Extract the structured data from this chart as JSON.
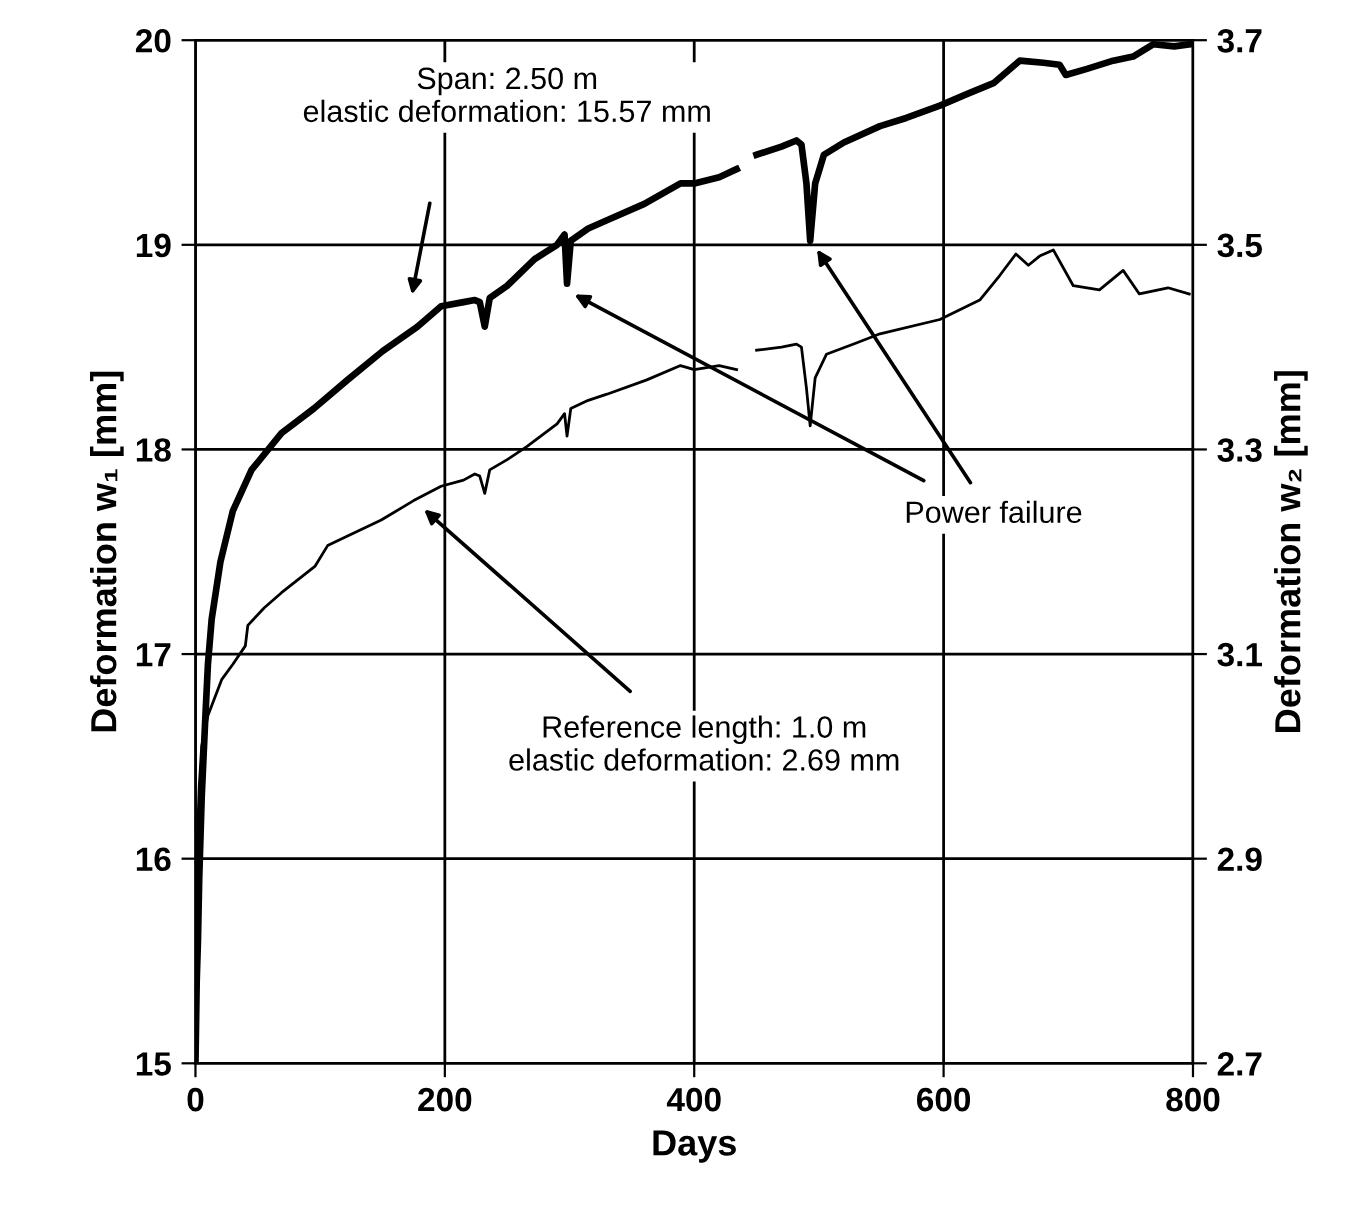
{
  "chart_data": {
    "type": "line",
    "xlabel": "Days",
    "ylabel": "Deformation w₁ [mm]",
    "y2label": "Deformation w₂ [mm]",
    "xlim": [
      0,
      800
    ],
    "xticks": [
      0,
      200,
      400,
      600,
      800
    ],
    "ylim": [
      15,
      20
    ],
    "yticks": [
      15,
      16,
      17,
      18,
      19,
      20
    ],
    "y2lim": [
      2.7,
      3.7
    ],
    "y2ticks": [
      2.7,
      2.9,
      3.1,
      3.3,
      3.5,
      3.7
    ],
    "grid": true,
    "marker": "none",
    "line_style": "solid",
    "series": [
      {
        "color": "#000000",
        "axis": "y",
        "x": [
          0,
          1,
          2,
          3,
          5,
          8,
          10,
          13,
          20,
          30,
          45,
          69,
          95,
          122,
          150,
          178,
          197,
          215,
          224,
          228,
          232,
          236,
          250,
          272,
          290,
          296,
          298,
          301,
          315,
          330,
          360,
          389,
          400,
          420,
          434,
          436,
          450,
          470,
          482,
          486,
          490,
          493,
          497,
          504,
          520,
          549,
          570,
          597,
          620,
          640,
          661,
          680,
          693,
          698,
          715,
          736,
          752,
          768,
          785,
          797
        ],
        "values": [
          15.0,
          15.4,
          15.6,
          15.9,
          16.3,
          16.7,
          16.95,
          17.17,
          17.45,
          17.7,
          17.9,
          18.08,
          18.2,
          18.34,
          18.48,
          18.6,
          18.7,
          18.72,
          18.73,
          18.72,
          18.6,
          18.74,
          18.8,
          18.93,
          19.0,
          19.05,
          18.81,
          19.02,
          19.08,
          19.12,
          19.2,
          19.3,
          19.3,
          19.33,
          19.37,
          null,
          19.44,
          19.48,
          19.51,
          19.49,
          19.3,
          19.02,
          19.3,
          19.44,
          19.5,
          19.58,
          19.62,
          19.68,
          19.74,
          19.79,
          19.9,
          19.89,
          19.88,
          19.83,
          19.86,
          19.9,
          19.92,
          19.98,
          19.97,
          19.98
        ]
      },
      {
        "color": "#000000",
        "axis": "y2",
        "x": [
          1,
          3,
          5,
          10,
          21,
          30,
          40,
          42,
          55,
          69,
          96,
          106,
          130,
          149,
          175,
          197,
          215,
          224,
          228,
          232,
          236,
          250,
          266,
          290,
          296,
          298,
          301,
          315,
          330,
          362,
          389,
          400,
          420,
          434,
          436,
          450,
          470,
          482,
          486,
          490,
          493,
          497,
          506,
          530,
          549,
          597,
          629,
          645,
          658,
          668,
          677,
          688,
          704,
          725,
          744,
          757,
          780,
          797
        ],
        "values": [
          2.9,
          2.97,
          3.01,
          3.04,
          3.075,
          3.09,
          3.108,
          3.128,
          3.145,
          3.16,
          3.186,
          3.206,
          3.22,
          3.231,
          3.25,
          3.264,
          3.27,
          3.276,
          3.274,
          3.257,
          3.28,
          3.29,
          3.303,
          3.325,
          3.335,
          3.313,
          3.34,
          3.348,
          3.354,
          3.368,
          3.382,
          3.378,
          3.382,
          3.378,
          null,
          3.397,
          3.4,
          3.403,
          3.4,
          3.36,
          3.323,
          3.37,
          3.393,
          3.404,
          3.413,
          3.427,
          3.446,
          3.47,
          3.491,
          3.48,
          3.489,
          3.495,
          3.46,
          3.456,
          3.475,
          3.452,
          3.458,
          3.452
        ]
      }
    ],
    "annotations": [
      "Span: 2.50 m\nelastic deformation: 15.57 mm",
      "Power failure",
      "Reference length: 1.0 m\nelastic deformation: 2.69 mm"
    ]
  }
}
